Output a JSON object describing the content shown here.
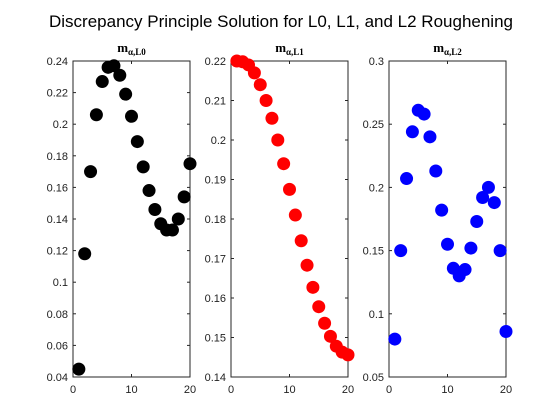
{
  "figure_title": "Discrepancy Principle Solution for L0, L1, and L2 Roughening",
  "chart_data": [
    {
      "type": "scatter",
      "title": {
        "base": "m",
        "sub": "α,L0"
      },
      "xlabel": "",
      "ylabel": "",
      "xlim": [
        0,
        20
      ],
      "ylim": [
        0.04,
        0.24
      ],
      "xticks": [
        "0",
        "10",
        "20"
      ],
      "yticks": [
        "0.04",
        "0.06",
        "0.08",
        "0.1",
        "0.12",
        "0.14",
        "0.16",
        "0.18",
        "0.2",
        "0.22",
        "0.24"
      ],
      "grid": false,
      "series": [
        {
          "color": "#000000",
          "x": [
            1,
            2,
            3,
            4,
            5,
            6,
            7,
            8,
            9,
            10,
            11,
            12,
            13,
            14,
            15,
            16,
            17,
            18,
            19,
            20
          ],
          "y": [
            0.045,
            0.118,
            0.17,
            0.206,
            0.227,
            0.236,
            0.237,
            0.231,
            0.219,
            0.205,
            0.189,
            0.173,
            0.158,
            0.146,
            0.137,
            0.133,
            0.133,
            0.14,
            0.154,
            0.175
          ]
        }
      ]
    },
    {
      "type": "scatter",
      "title": {
        "base": "m",
        "sub": "α,L1"
      },
      "xlabel": "",
      "ylabel": "",
      "xlim": [
        0,
        20
      ],
      "ylim": [
        0.14,
        0.22
      ],
      "xticks": [
        "0",
        "10",
        "20"
      ],
      "yticks": [
        "0.14",
        "0.15",
        "0.16",
        "0.17",
        "0.18",
        "0.19",
        "0.2",
        "0.21",
        "0.22"
      ],
      "grid": false,
      "series": [
        {
          "color": "#ff0000",
          "x": [
            1,
            2,
            3,
            4,
            5,
            6,
            7,
            8,
            9,
            10,
            11,
            12,
            13,
            14,
            15,
            16,
            17,
            18,
            19,
            20
          ],
          "y": [
            0.22,
            0.2198,
            0.219,
            0.217,
            0.214,
            0.21,
            0.2055,
            0.2,
            0.194,
            0.1875,
            0.181,
            0.1745,
            0.1683,
            0.1627,
            0.1578,
            0.1536,
            0.1503,
            0.1478,
            0.1463,
            0.1456
          ]
        }
      ]
    },
    {
      "type": "scatter",
      "title": {
        "base": "m",
        "sub": "α,L2"
      },
      "xlabel": "",
      "ylabel": "",
      "xlim": [
        0,
        20
      ],
      "ylim": [
        0.05,
        0.3
      ],
      "xticks": [
        "0",
        "10",
        "20"
      ],
      "yticks": [
        "0.05",
        "0.1",
        "0.15",
        "0.2",
        "0.25",
        "0.3"
      ],
      "grid": false,
      "series": [
        {
          "color": "#0000ff",
          "x": [
            1,
            2,
            3,
            4,
            5,
            6,
            7,
            8,
            9,
            10,
            11,
            12,
            13,
            14,
            15,
            16,
            17,
            18,
            19,
            20
          ],
          "y": [
            0.08,
            0.15,
            0.207,
            0.244,
            0.261,
            0.258,
            0.24,
            0.213,
            0.182,
            0.155,
            0.136,
            0.13,
            0.135,
            0.152,
            0.173,
            0.192,
            0.2,
            0.188,
            0.15,
            0.086
          ]
        }
      ]
    }
  ]
}
